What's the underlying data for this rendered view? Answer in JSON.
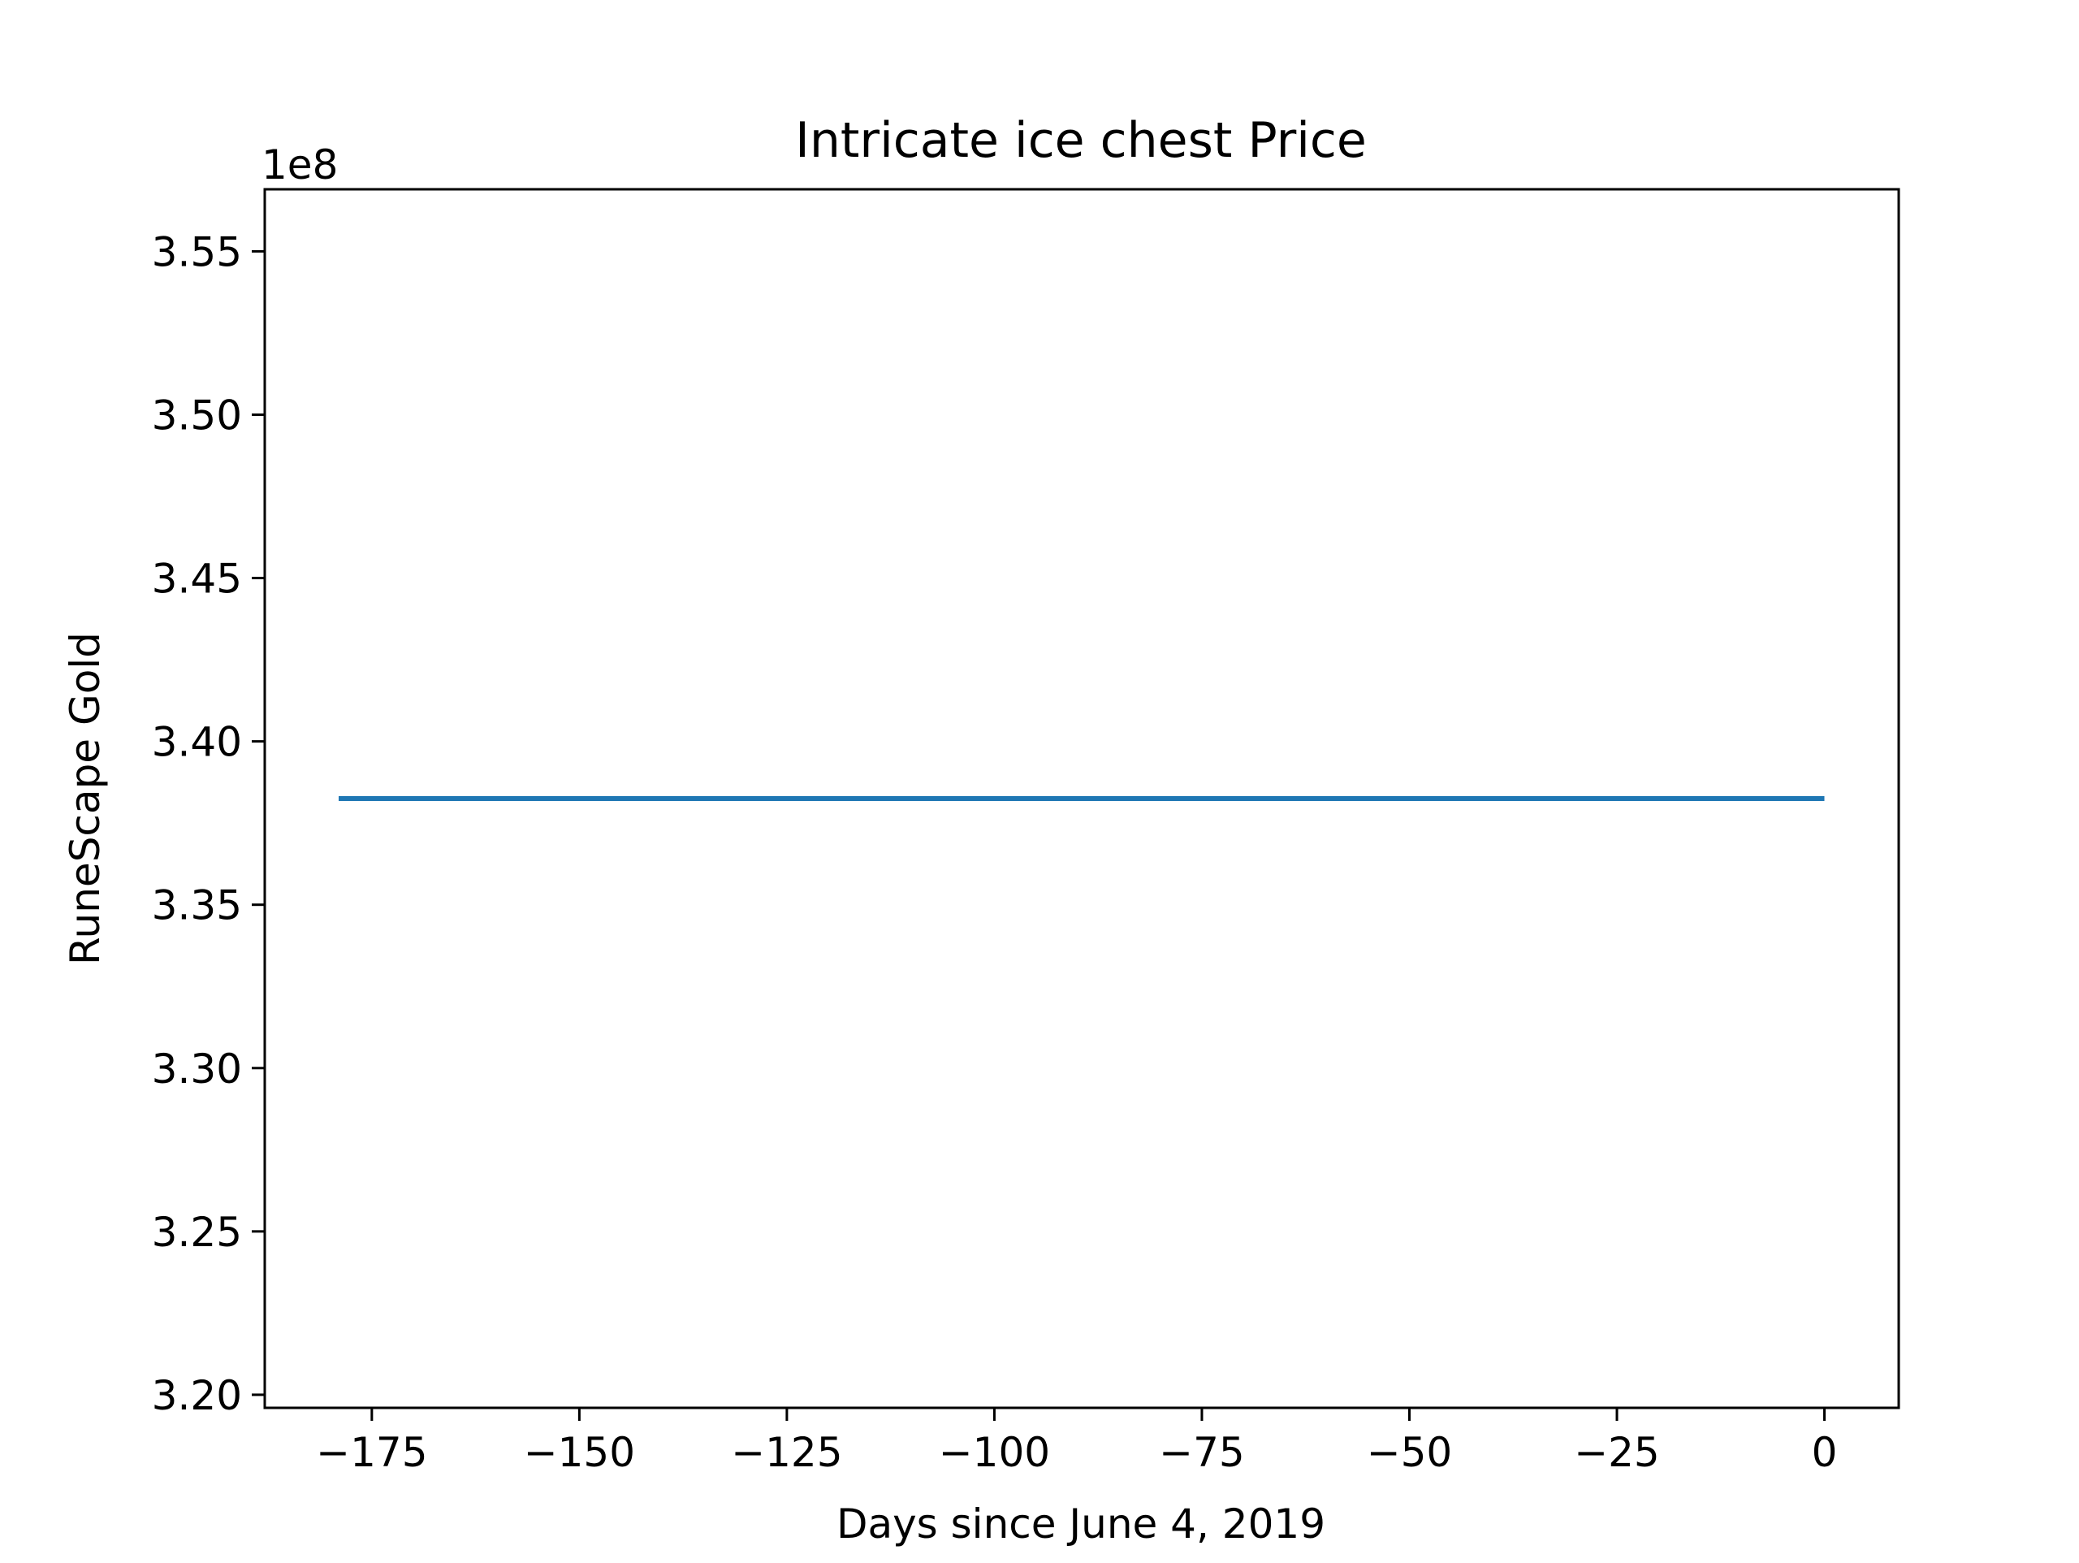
{
  "chart_data": {
    "type": "line",
    "title": "Intricate ice chest Price",
    "xlabel": "Days since June 4, 2019",
    "ylabel": "RuneScape Gold",
    "y_offset_text": "1e8",
    "xlim": [
      -187.9,
      8.95
    ],
    "ylim": [
      319600000,
      356900000
    ],
    "x_ticks": [
      -175,
      -150,
      -125,
      -100,
      -75,
      -50,
      -25,
      0
    ],
    "x_tick_labels": [
      "−175",
      "−150",
      "−125",
      "−100",
      "−75",
      "−50",
      "−25",
      "0"
    ],
    "y_ticks": [
      320000000,
      325000000,
      330000000,
      335000000,
      340000000,
      345000000,
      350000000,
      355000000
    ],
    "y_tick_labels": [
      "3.20",
      "3.25",
      "3.30",
      "3.35",
      "3.40",
      "3.45",
      "3.50",
      "3.55"
    ],
    "grid": false,
    "series": [
      {
        "color": "#1f77b4",
        "x": [
          -179,
          -150,
          -125,
          -100,
          -75,
          -50,
          -25,
          0
        ],
        "y": [
          338250000,
          338250000,
          338250000,
          338250000,
          338250000,
          338250000,
          338250000,
          338250000
        ]
      }
    ]
  }
}
